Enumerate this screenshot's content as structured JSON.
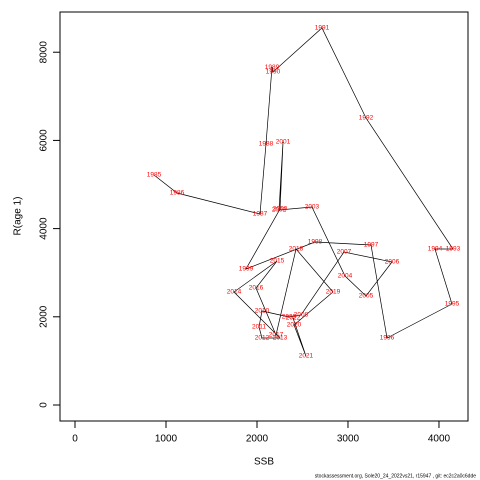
{
  "chart_data": {
    "type": "line",
    "x_label": "SSB",
    "y_label": "R(age 1)",
    "footnote": "stockassessment.org, Sole20_24_2022vs21, r15947 , git: ec2c2a0c6dde",
    "x": [
      868,
      1121,
      2033,
      2099,
      2165,
      2176,
      2714,
      3198,
      4154,
      3956,
      4143,
      3429,
      3253,
      2637,
      1879,
      2253,
      2286,
      2242,
      2604,
      2967,
      3198,
      3484,
      2956,
      2484,
      2352,
      2055,
      2022,
      2055,
      2253,
      1747,
      2220,
      1989,
      2209,
      2429,
      2835,
      2407,
      2538,
      2396
    ],
    "values": [
      5215,
      4807,
      4331,
      5918,
      7664,
      7551,
      8549,
      6508,
      3537,
      3537,
      2290,
      1519,
      3628,
      3696,
      3084,
      4444,
      5964,
      4422,
      4490,
      2925,
      2472,
      3243,
      3469,
      2041,
      1995,
      2132,
      1769,
      1519,
      1519,
      2562,
      3265,
      2653,
      1587,
      3537,
      2562,
      1814,
      1111,
      1973
    ],
    "point_labels": [
      "1985",
      "1986",
      "1987",
      "1988",
      "1989",
      "1990",
      "1991",
      "1992",
      "1993",
      "1994",
      "1995",
      "1996",
      "1997",
      "1998",
      "1999",
      "2000",
      "2001",
      "2002",
      "2003",
      "2004",
      "2005",
      "2006",
      "2007",
      "2008",
      "2009",
      "2010",
      "2011",
      "2012",
      "2013",
      "2014",
      "2015",
      "2016",
      "2017",
      "2018",
      "2019",
      "2020",
      "2021",
      "2022"
    ],
    "line_color": "#000000",
    "label_color": "#ff0000",
    "xlim": [
      -165,
      4319
    ],
    "ylim": [
      -363,
      8912
    ],
    "xticks": [
      0,
      1000,
      2000,
      3000,
      4000
    ],
    "yticks": [
      0,
      2000,
      4000,
      6000,
      8000
    ]
  }
}
